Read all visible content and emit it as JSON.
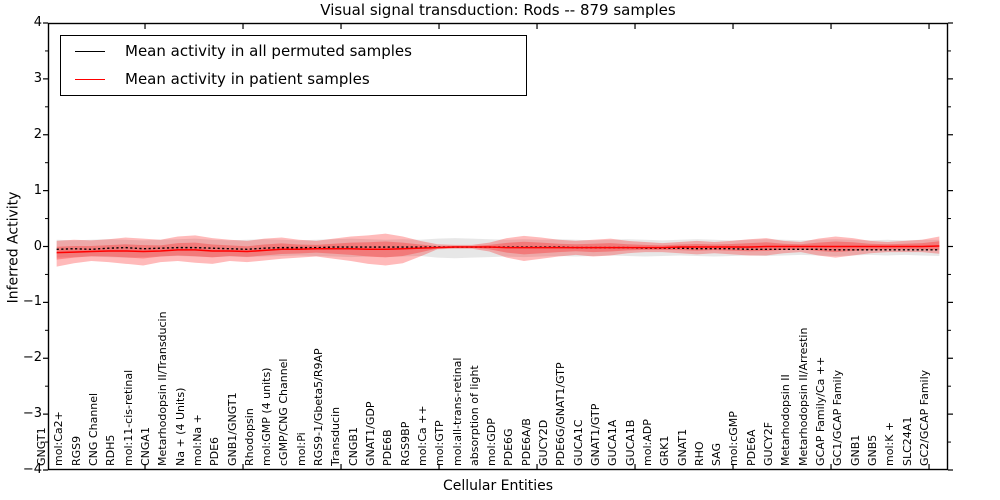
{
  "title": "Visual signal transduction: Rods -- 879 samples",
  "axes": {
    "ylabel": "Inferred Activity",
    "xlabel": "Cellular Entities",
    "ytick_values": [
      4,
      3,
      2,
      1,
      0,
      -1,
      -2,
      -3,
      -4
    ],
    "ytick_labels": [
      "4",
      "3",
      "2",
      "1",
      "0",
      "−1",
      "−2",
      "−3",
      "−4"
    ]
  },
  "legend": {
    "items": [
      {
        "label": "Mean activity in all permuted samples",
        "color": "#000000"
      },
      {
        "label": "Mean activity in patient samples",
        "color": "#ff0000"
      }
    ]
  },
  "colors": {
    "frame": "#000000",
    "patient_band": "#ff0000",
    "patient_band_opacity": 0.27,
    "permuted_band": "#888888",
    "permuted_band_opacity": 0.2,
    "permuted_line": "#000000",
    "patient_line": "#ff0000",
    "background": "#ffffff"
  },
  "chart_data": {
    "type": "line",
    "title": "Visual signal transduction: Rods -- 879 samples",
    "xlabel": "Cellular Entities",
    "ylabel": "Inferred Activity",
    "ylim": [
      -4,
      4
    ],
    "grid": false,
    "legend_position": "upper left",
    "categories": [
      "GNGT1",
      "mol:Ca2+",
      "RGS9",
      "CNG Channel",
      "RDH5",
      "mol:11-cis-retinal",
      "CNGA1",
      "Metarhodopsin II/Transducin",
      "Na + (4 Units)",
      "mol:Na +",
      "PDE6",
      "GNB1/GNGT1",
      "Rhodopsin",
      "mol:GMP (4 units)",
      "cGMP/CNG Channel",
      "mol:Pi",
      "RGS9-1/Gbeta5/R9AP",
      "Transducin",
      "CNGB1",
      "GNAT1/GDP",
      "PDE6B",
      "RGS9BP",
      "mol:Ca ++",
      "mol:GTP",
      "mol:all-trans-retinal",
      "absorption of light",
      "mol:GDP",
      "PDE6G",
      "PDE6A/B",
      "GUCY2D",
      "PDE6G/GNAT1/GTP",
      "GUCA1C",
      "GNAT1/GTP",
      "GUCA1A",
      "GUCA1B",
      "mol:ADP",
      "GRK1",
      "GNAT1",
      "RHO",
      "SAG",
      "mol:cGMP",
      "PDE6A",
      "GUCY2F",
      "Metarhodopsin II",
      "Metarhodopsin II/Arrestin",
      "GCAP Family/Ca ++",
      "GC1/GCAP Family",
      "GNB1",
      "GNB5",
      "mol:K +",
      "SLC24A1",
      "GC2/GCAP Family"
    ],
    "series": [
      {
        "name": "permuted_mean",
        "style": "dashed-black",
        "values": [
          -0.05,
          -0.04,
          -0.05,
          -0.03,
          -0.02,
          -0.04,
          -0.03,
          -0.02,
          -0.02,
          -0.03,
          -0.04,
          -0.05,
          -0.03,
          -0.02,
          -0.02,
          -0.02,
          -0.01,
          -0.01,
          -0.01,
          -0.01,
          -0.01,
          -0.01,
          -0.01,
          -0.01,
          -0.01,
          -0.01,
          -0.01,
          -0.01,
          -0.01,
          -0.01,
          -0.02,
          -0.02,
          -0.02,
          -0.02,
          -0.03,
          -0.03,
          -0.03,
          -0.04,
          -0.04,
          -0.04,
          -0.05,
          -0.05,
          -0.05,
          -0.05,
          -0.05,
          -0.06,
          -0.06,
          -0.06,
          -0.06,
          -0.06,
          -0.06,
          -0.06
        ]
      },
      {
        "name": "patient_mean",
        "style": "solid-red",
        "values": [
          -0.11,
          -0.1,
          -0.09,
          -0.08,
          -0.08,
          -0.09,
          -0.08,
          -0.06,
          -0.06,
          -0.08,
          -0.08,
          -0.09,
          -0.07,
          -0.05,
          -0.05,
          -0.04,
          -0.04,
          -0.04,
          -0.05,
          -0.05,
          -0.04,
          -0.03,
          -0.02,
          -0.01,
          -0.01,
          -0.01,
          -0.02,
          -0.02,
          -0.02,
          -0.02,
          -0.02,
          -0.02,
          -0.02,
          -0.02,
          -0.02,
          -0.02,
          -0.01,
          -0.01,
          -0.01,
          -0.01,
          -0.01,
          0.0,
          0.0,
          0.0,
          0.0,
          0.0,
          0.0,
          0.0,
          0.0,
          0.0,
          0.0,
          0.01
        ]
      },
      {
        "name": "permuted_band_upper",
        "style": "gray-band",
        "values": [
          0.12,
          0.11,
          0.12,
          0.13,
          0.12,
          0.11,
          0.12,
          0.13,
          0.14,
          0.12,
          0.11,
          0.12,
          0.13,
          0.12,
          0.11,
          0.12,
          0.13,
          0.14,
          0.13,
          0.12,
          0.13,
          0.12,
          0.14,
          0.15,
          0.14,
          0.13,
          0.12,
          0.13,
          0.12,
          0.13,
          0.12,
          0.11,
          0.12,
          0.13,
          0.12,
          0.11,
          0.12,
          0.13,
          0.12,
          0.11,
          0.12,
          0.13,
          0.12,
          0.11,
          0.12,
          0.13,
          0.12,
          0.11,
          0.12,
          0.11,
          0.12,
          0.12
        ]
      },
      {
        "name": "permuted_band_lower",
        "style": "gray-band",
        "values": [
          -0.2,
          -0.19,
          -0.18,
          -0.19,
          -0.2,
          -0.19,
          -0.18,
          -0.17,
          -0.18,
          -0.19,
          -0.18,
          -0.19,
          -0.18,
          -0.17,
          -0.16,
          -0.17,
          -0.18,
          -0.19,
          -0.18,
          -0.19,
          -0.18,
          -0.17,
          -0.2,
          -0.21,
          -0.2,
          -0.19,
          -0.18,
          -0.19,
          -0.18,
          -0.17,
          -0.18,
          -0.17,
          -0.16,
          -0.17,
          -0.18,
          -0.17,
          -0.16,
          -0.17,
          -0.18,
          -0.17,
          -0.16,
          -0.17,
          -0.16,
          -0.15,
          -0.16,
          -0.17,
          -0.16,
          -0.15,
          -0.16,
          -0.15,
          -0.16,
          -0.17
        ]
      },
      {
        "name": "patient_band_upper",
        "style": "red-band",
        "values": [
          0.1,
          0.12,
          0.11,
          0.13,
          0.16,
          0.14,
          0.12,
          0.18,
          0.2,
          0.15,
          0.12,
          0.1,
          0.14,
          0.16,
          0.12,
          0.1,
          0.14,
          0.18,
          0.2,
          0.23,
          0.18,
          0.1,
          0.04,
          0.03,
          0.03,
          0.07,
          0.15,
          0.19,
          0.16,
          0.12,
          0.1,
          0.12,
          0.14,
          0.1,
          0.08,
          0.06,
          0.08,
          0.1,
          0.08,
          0.1,
          0.13,
          0.15,
          0.1,
          0.08,
          0.14,
          0.18,
          0.15,
          0.1,
          0.08,
          0.1,
          0.12,
          0.18
        ]
      },
      {
        "name": "patient_band_lower",
        "style": "red-band",
        "values": [
          -0.36,
          -0.3,
          -0.26,
          -0.28,
          -0.31,
          -0.34,
          -0.28,
          -0.26,
          -0.29,
          -0.31,
          -0.26,
          -0.28,
          -0.25,
          -0.22,
          -0.2,
          -0.18,
          -0.22,
          -0.26,
          -0.31,
          -0.34,
          -0.3,
          -0.18,
          -0.05,
          -0.04,
          -0.04,
          -0.09,
          -0.2,
          -0.26,
          -0.22,
          -0.18,
          -0.15,
          -0.18,
          -0.16,
          -0.12,
          -0.1,
          -0.1,
          -0.12,
          -0.14,
          -0.12,
          -0.14,
          -0.16,
          -0.16,
          -0.12,
          -0.1,
          -0.16,
          -0.2,
          -0.16,
          -0.12,
          -0.1,
          -0.1,
          -0.1,
          -0.13
        ]
      }
    ]
  }
}
